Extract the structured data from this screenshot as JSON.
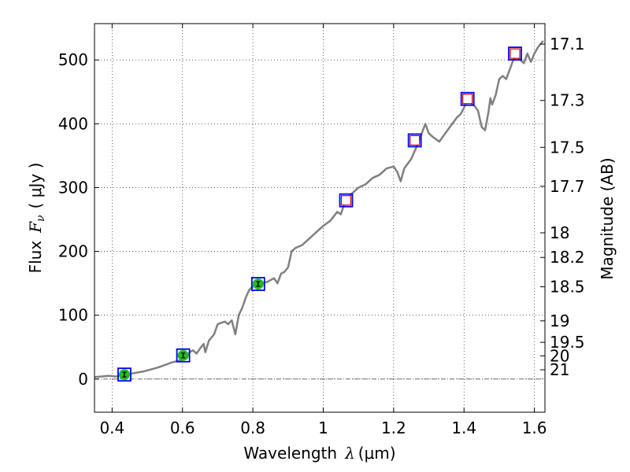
{
  "chart_data": {
    "type": "line",
    "xlabel_prefix": "Wavelength",
    "xlabel_symbol": "λ",
    "xlabel_unit": "(μm)",
    "ylabel_prefix": "Flux",
    "ylabel_symbol": "F",
    "ylabel_subscript": "ν",
    "ylabel_unit": "( μJy )",
    "y2label": "Magnitude (AB)",
    "xlim": [
      0.35,
      1.63
    ],
    "ylim": [
      -52,
      557
    ],
    "grid": true,
    "xticks": [
      {
        "value": 0.4,
        "label": "0.4"
      },
      {
        "value": 0.6,
        "label": "0.6"
      },
      {
        "value": 0.8,
        "label": "0.8"
      },
      {
        "value": 1.0,
        "label": "1"
      },
      {
        "value": 1.2,
        "label": "1.2"
      },
      {
        "value": 1.4,
        "label": "1.4"
      },
      {
        "value": 1.6,
        "label": "1.6"
      }
    ],
    "yticks": [
      {
        "value": 0,
        "label": "0"
      },
      {
        "value": 100,
        "label": "100"
      },
      {
        "value": 200,
        "label": "200"
      },
      {
        "value": 300,
        "label": "300"
      },
      {
        "value": 400,
        "label": "400"
      },
      {
        "value": 500,
        "label": "500"
      }
    ],
    "mag_ticks": [
      {
        "value": 17.1,
        "label": "17.1"
      },
      {
        "value": 17.3,
        "label": "17.3"
      },
      {
        "value": 17.5,
        "label": "17.5"
      },
      {
        "value": 17.7,
        "label": "17.7"
      },
      {
        "value": 18,
        "label": "18"
      },
      {
        "value": 18.2,
        "label": "18.2"
      },
      {
        "value": 18.5,
        "label": "18.5"
      },
      {
        "value": 19,
        "label": "19"
      },
      {
        "value": 19.5,
        "label": "19.5"
      },
      {
        "value": 20,
        "label": "20"
      },
      {
        "value": 21,
        "label": "21"
      }
    ],
    "zero_line": 0,
    "series": [
      {
        "name": "spectrum",
        "kind": "line",
        "color": "#808080",
        "points": [
          [
            0.35,
            3
          ],
          [
            0.37,
            4
          ],
          [
            0.39,
            5
          ],
          [
            0.41,
            4
          ],
          [
            0.43,
            6
          ],
          [
            0.45,
            8
          ],
          [
            0.47,
            10
          ],
          [
            0.49,
            12
          ],
          [
            0.51,
            15
          ],
          [
            0.53,
            18
          ],
          [
            0.55,
            22
          ],
          [
            0.57,
            26
          ],
          [
            0.585,
            28
          ],
          [
            0.6,
            30
          ],
          [
            0.61,
            34
          ],
          [
            0.62,
            42
          ],
          [
            0.63,
            45
          ],
          [
            0.64,
            40
          ],
          [
            0.65,
            48
          ],
          [
            0.66,
            55
          ],
          [
            0.665,
            42
          ],
          [
            0.675,
            60
          ],
          [
            0.69,
            70
          ],
          [
            0.7,
            86
          ],
          [
            0.71,
            88
          ],
          [
            0.72,
            90
          ],
          [
            0.73,
            86
          ],
          [
            0.74,
            92
          ],
          [
            0.75,
            70
          ],
          [
            0.76,
            100
          ],
          [
            0.77,
            112
          ],
          [
            0.78,
            128
          ],
          [
            0.79,
            140
          ],
          [
            0.8,
            145
          ],
          [
            0.82,
            150
          ],
          [
            0.84,
            152
          ],
          [
            0.86,
            158
          ],
          [
            0.87,
            150
          ],
          [
            0.88,
            165
          ],
          [
            0.89,
            168
          ],
          [
            0.9,
            175
          ],
          [
            0.91,
            200
          ],
          [
            0.92,
            205
          ],
          [
            0.94,
            210
          ],
          [
            0.96,
            220
          ],
          [
            0.98,
            230
          ],
          [
            1.0,
            240
          ],
          [
            1.02,
            248
          ],
          [
            1.04,
            262
          ],
          [
            1.05,
            258
          ],
          [
            1.06,
            275
          ],
          [
            1.08,
            290
          ],
          [
            1.1,
            300
          ],
          [
            1.12,
            305
          ],
          [
            1.14,
            315
          ],
          [
            1.16,
            320
          ],
          [
            1.18,
            330
          ],
          [
            1.2,
            333
          ],
          [
            1.21,
            325
          ],
          [
            1.22,
            310
          ],
          [
            1.23,
            330
          ],
          [
            1.25,
            345
          ],
          [
            1.27,
            370
          ],
          [
            1.28,
            385
          ],
          [
            1.29,
            400
          ],
          [
            1.3,
            385
          ],
          [
            1.31,
            380
          ],
          [
            1.33,
            372
          ],
          [
            1.34,
            380
          ],
          [
            1.36,
            395
          ],
          [
            1.38,
            410
          ],
          [
            1.39,
            415
          ],
          [
            1.4,
            425
          ],
          [
            1.41,
            440
          ],
          [
            1.42,
            432
          ],
          [
            1.43,
            428
          ],
          [
            1.44,
            420
          ],
          [
            1.45,
            395
          ],
          [
            1.46,
            390
          ],
          [
            1.47,
            420
          ],
          [
            1.475,
            440
          ],
          [
            1.48,
            430
          ],
          [
            1.49,
            445
          ],
          [
            1.5,
            470
          ],
          [
            1.51,
            475
          ],
          [
            1.52,
            470
          ],
          [
            1.53,
            485
          ],
          [
            1.54,
            500
          ],
          [
            1.55,
            505
          ],
          [
            1.56,
            500
          ],
          [
            1.57,
            495
          ],
          [
            1.58,
            510
          ],
          [
            1.59,
            497
          ],
          [
            1.6,
            510
          ],
          [
            1.61,
            520
          ],
          [
            1.625,
            530
          ]
        ]
      },
      {
        "name": "blue-squares",
        "kind": "square-markers",
        "color": "#0000ff",
        "points": [
          [
            0.435,
            7
          ],
          [
            0.602,
            37
          ],
          [
            0.815,
            149
          ],
          [
            1.065,
            280
          ],
          [
            1.26,
            374
          ],
          [
            1.41,
            439
          ],
          [
            1.545,
            510
          ]
        ]
      },
      {
        "name": "red-squares",
        "kind": "square-markers",
        "color": "#cc0000",
        "points": [
          [
            1.065,
            280
          ],
          [
            1.26,
            374
          ],
          [
            1.41,
            439
          ],
          [
            1.545,
            510
          ]
        ]
      },
      {
        "name": "green-circles",
        "kind": "circle-markers",
        "color": "#22bb22",
        "points": [
          [
            0.435,
            7
          ],
          [
            0.602,
            37
          ],
          [
            0.815,
            149
          ]
        ]
      }
    ]
  }
}
